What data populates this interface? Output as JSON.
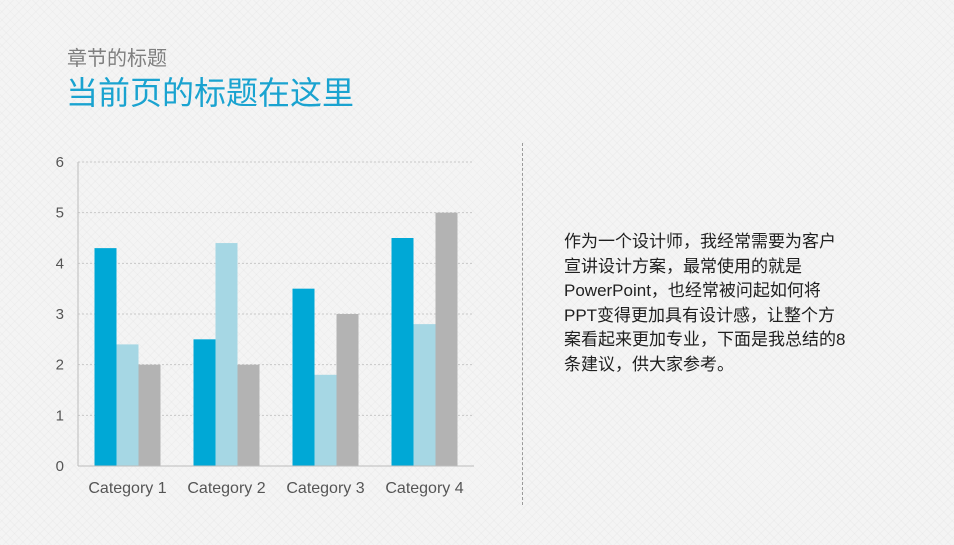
{
  "header": {
    "chapter_title": "章节的标题",
    "page_title": "当前页的标题在这里"
  },
  "body_text": {
    "lines": [
      "作为一个设计师，我经常需要为客户",
      "宣讲设计方案，最常使用的就是",
      "PowerPoint，也经常被问起如何将",
      "PPT变得更加具有设计感，让整个方",
      "案看起来更加专业，下面是我总结的8",
      "条建议，供大家参考。"
    ]
  },
  "colors": {
    "accent": "#1aa3d0",
    "series": [
      "#00a8d6",
      "#a6d7e4",
      "#b3b3b3"
    ]
  },
  "chart_data": {
    "type": "bar",
    "categories": [
      "Category 1",
      "Category 2",
      "Category 3",
      "Category 4"
    ],
    "series": [
      {
        "values": [
          4.3,
          2.5,
          3.5,
          4.5
        ]
      },
      {
        "values": [
          2.4,
          4.4,
          1.8,
          2.8
        ]
      },
      {
        "values": [
          2.0,
          2.0,
          3.0,
          5.0
        ]
      }
    ],
    "ylim": [
      0,
      6
    ],
    "yticks": [
      0,
      1,
      2,
      3,
      4,
      5,
      6
    ],
    "grid": true,
    "legend": "none",
    "xlabel": "",
    "ylabel": ""
  }
}
